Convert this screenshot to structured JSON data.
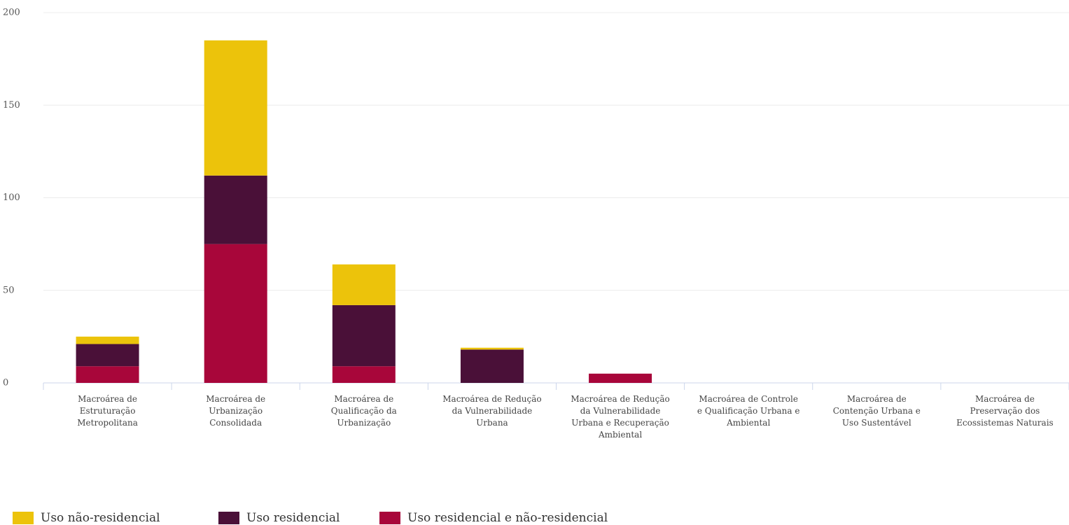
{
  "chart_data": {
    "type": "bar",
    "stacked": true,
    "categories": [
      "Macroárea de Estruturação Metropolitana",
      "Macroárea de Urbanização Consolidada",
      "Macroárea de Qualificação da Urbanização",
      "Macroárea de Redução da Vulnerabilidade Urbana",
      "Macroárea de Redução da Vulnerabilidade Urbana e Recuperação Ambiental",
      "Macroárea de Controle e Qualificação Urbana e Ambiental",
      "Macroárea de Contenção Urbana e Uso Sustentável",
      "Macroárea de Preservação dos Ecossistemas Naturais"
    ],
    "series": [
      {
        "name": "Uso não-residencial",
        "color": "#ecc30b",
        "values": [
          4,
          73,
          22,
          1,
          0,
          0,
          0,
          0
        ]
      },
      {
        "name": "Uso residencial",
        "color": "#4a1038",
        "values": [
          12,
          37,
          33,
          18,
          0,
          0,
          0,
          0
        ]
      },
      {
        "name": "Uso residencial e não-residencial",
        "color": "#a8063a",
        "values": [
          9,
          75,
          9,
          0,
          5,
          0,
          0,
          0
        ]
      }
    ],
    "ylim": [
      0,
      200
    ],
    "yticks": [
      0,
      50,
      100,
      150,
      200
    ],
    "grid": true,
    "legend": "bottom-left"
  }
}
